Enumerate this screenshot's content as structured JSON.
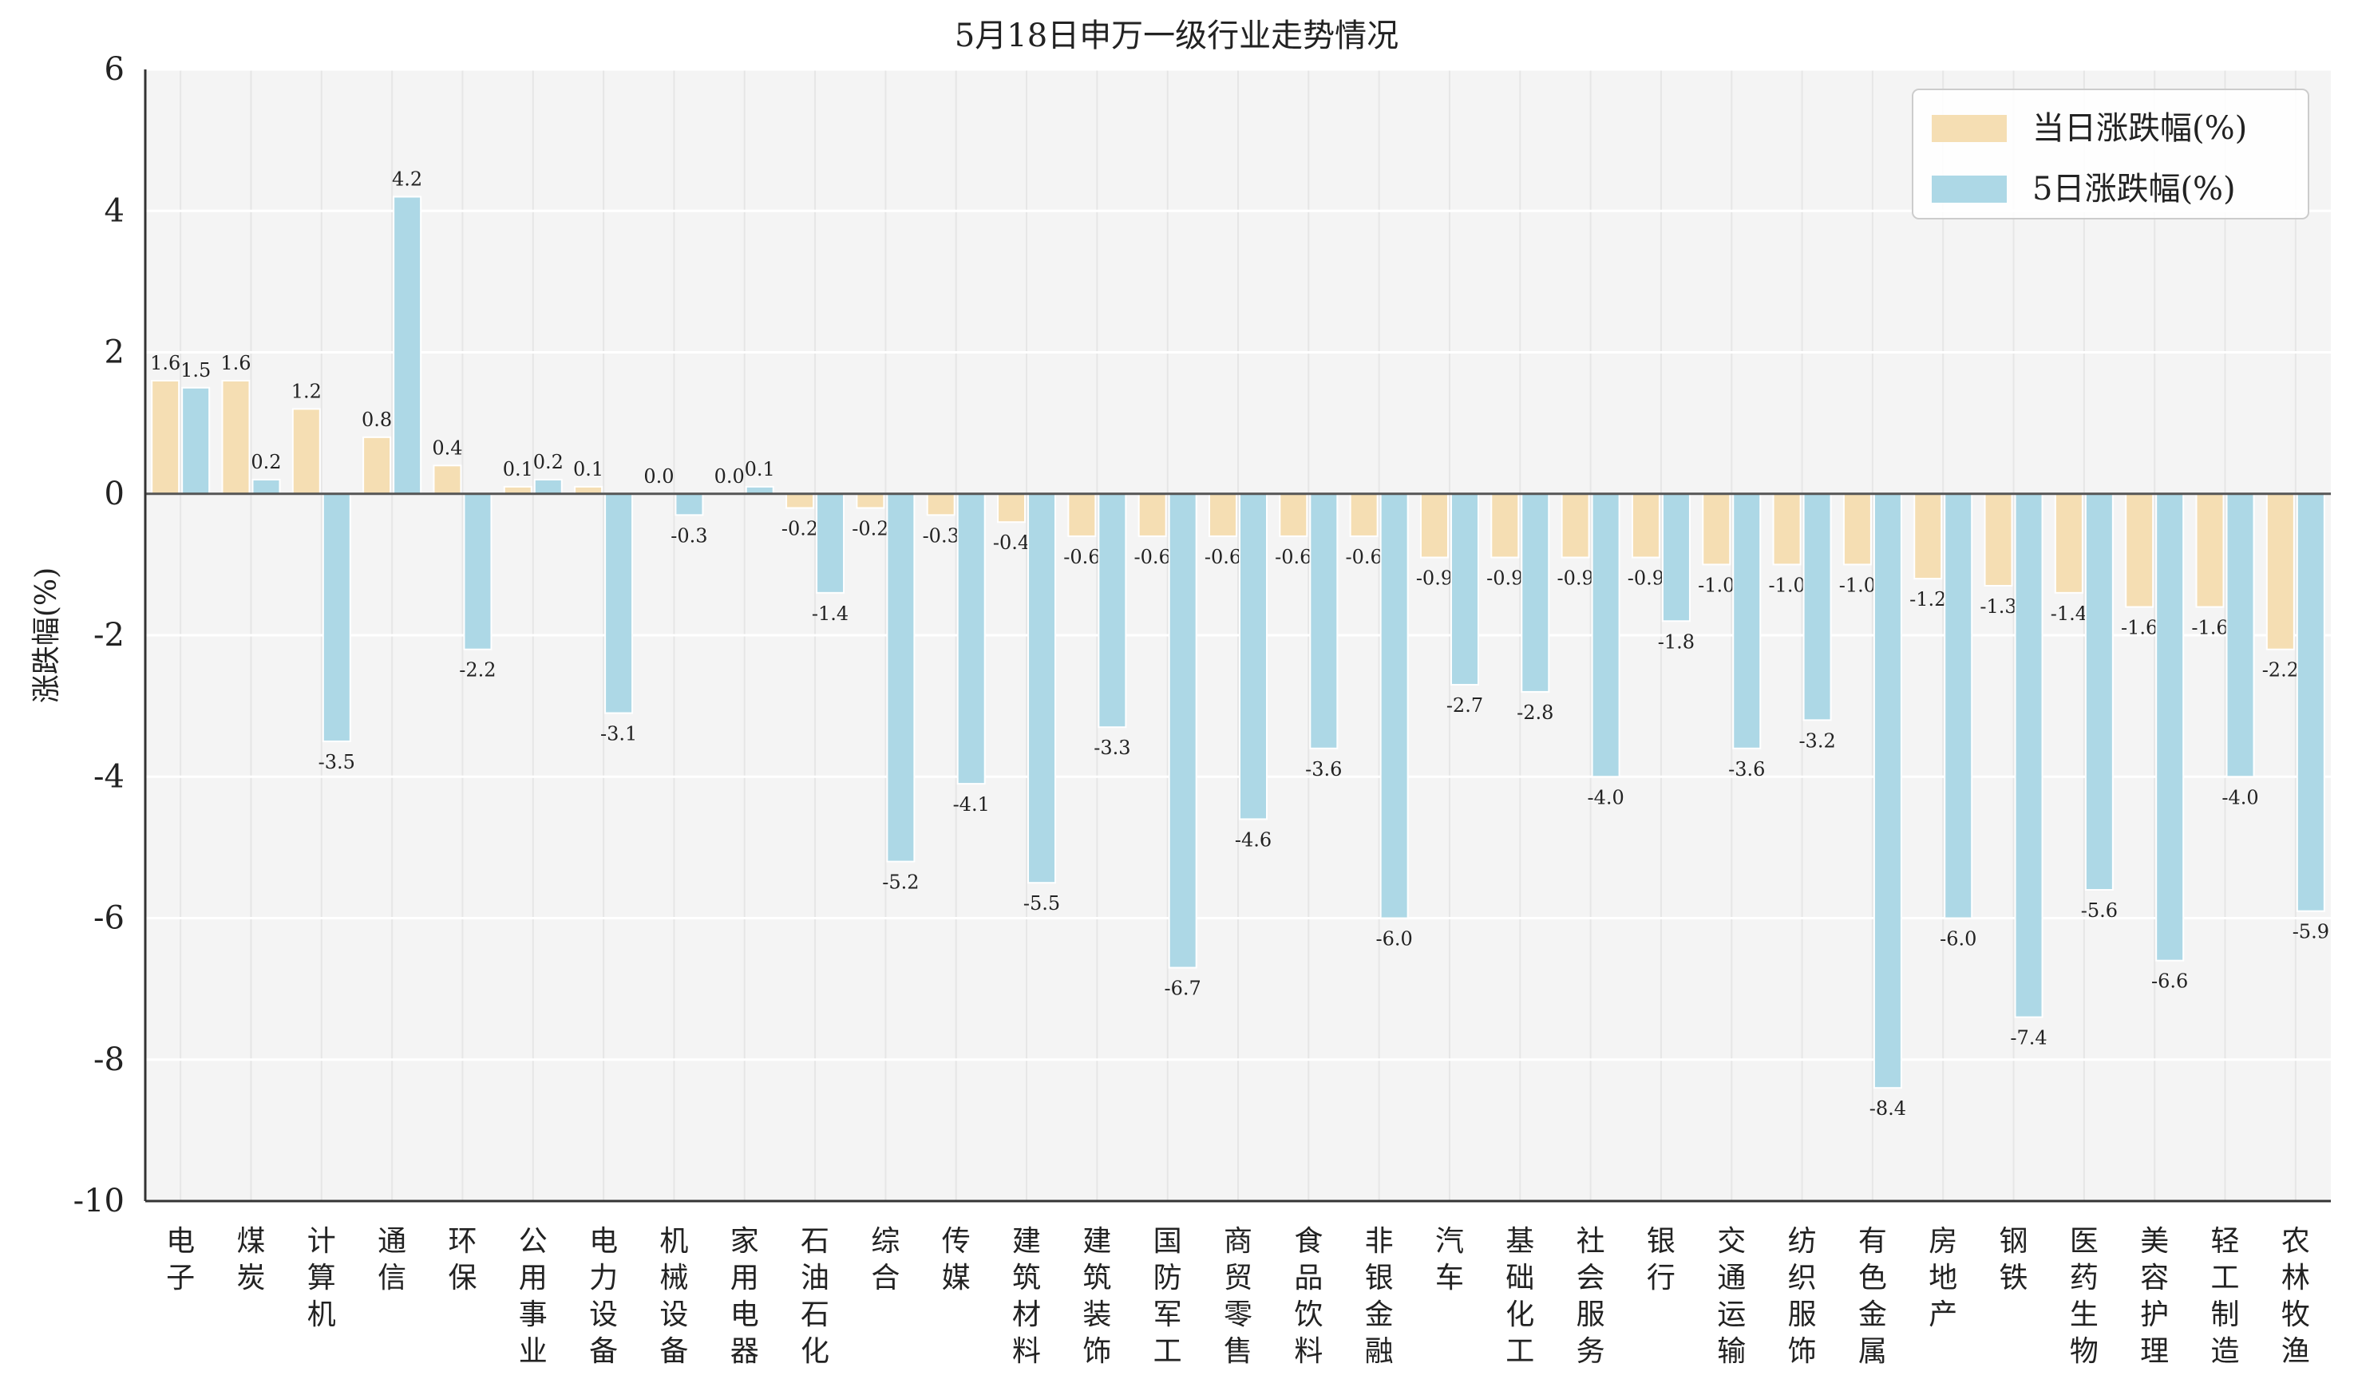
{
  "chart_data": {
    "type": "bar",
    "title": "5月18日申万一级行业走势情况",
    "ylabel": "涨跌幅(%)",
    "xlabel": "",
    "ylim": [
      -10,
      6
    ],
    "yticks": [
      -10,
      -8,
      -6,
      -4,
      -2,
      0,
      2,
      4,
      6
    ],
    "grid": true,
    "legend_position": "top-right",
    "colors": {
      "daily": "#f5deb3",
      "five_day": "#add8e6",
      "plot_bg": "#f4f4f4",
      "grid": "#ffffff",
      "zero_line": "#555555"
    },
    "categories": [
      "电子",
      "煤炭",
      "计算机",
      "通信",
      "环保",
      "公用事业",
      "电力设备",
      "机械设备",
      "家用电器",
      "石油石化",
      "综合",
      "传媒",
      "建筑材料",
      "建筑装饰",
      "国防军工",
      "商贸零售",
      "食品饮料",
      "非银金融",
      "汽车",
      "基础化工",
      "社会服务",
      "银行",
      "交通运输",
      "纺织服饰",
      "有色金属",
      "房地产",
      "钢铁",
      "医药生物",
      "美容护理",
      "轻工制造",
      "农林牧渔"
    ],
    "series": [
      {
        "name": "当日涨跌幅(%)",
        "values": [
          1.6,
          1.6,
          1.2,
          0.8,
          0.4,
          0.1,
          0.1,
          0.0,
          0.0,
          -0.2,
          -0.2,
          -0.3,
          -0.4,
          -0.6,
          -0.6,
          -0.6,
          -0.6,
          -0.6,
          -0.9,
          -0.9,
          -0.9,
          -0.9,
          -1.0,
          -1.0,
          -1.0,
          -1.2,
          -1.3,
          -1.4,
          -1.6,
          -1.6,
          -2.2
        ]
      },
      {
        "name": "5日涨跌幅(%)",
        "values": [
          1.5,
          0.2,
          -3.5,
          4.2,
          -2.2,
          0.2,
          -3.1,
          -0.3,
          0.1,
          -1.4,
          -5.2,
          -4.1,
          -5.5,
          -3.3,
          -6.7,
          -4.6,
          -3.6,
          -6.0,
          -2.7,
          -2.8,
          -4.0,
          -1.8,
          -3.6,
          -3.2,
          -8.4,
          -6.0,
          -7.4,
          -5.6,
          -6.6,
          -4.0,
          -5.9
        ]
      }
    ]
  }
}
